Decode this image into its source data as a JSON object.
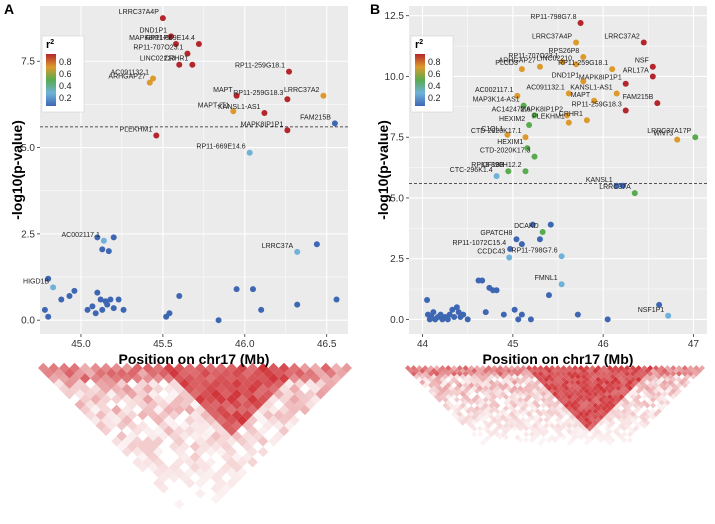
{
  "legend": {
    "title": "r",
    "title_sup": "2",
    "ticks": [
      "0.8",
      "0.6",
      "0.4",
      "0.2"
    ]
  },
  "colors": {
    "bin1": "#3e67b3",
    "bin2": "#6fb2d9",
    "bin3": "#59ab4f",
    "bin4": "#dd9a2c",
    "bin5": "#b3262c",
    "panel_bg": "#ebebeb",
    "grid": "#ffffff",
    "threshold": "#222222"
  },
  "chart_data": [
    {
      "panel": "A",
      "type": "scatter",
      "xlabel": "Position on chr17 (Mb)",
      "ylabel": "-log10(p-value)",
      "xlim": [
        44.75,
        46.63
      ],
      "ylim": [
        -0.4,
        9.1
      ],
      "xticks": [
        "45.0",
        "45.5",
        "46.0",
        "46.5"
      ],
      "yticks": [
        "0.0",
        "2.5",
        "5.0",
        "7.5"
      ],
      "threshold": 5.6,
      "points": [
        {
          "x": 45.5,
          "y": 8.75,
          "r2": 0.9,
          "label": "LRRC37A4P"
        },
        {
          "x": 45.55,
          "y": 8.22,
          "r2": 0.9,
          "label": "DND1P1"
        },
        {
          "x": 45.58,
          "y": 8.0,
          "r2": 0.9,
          "label": "MAPK8IP1P2"
        },
        {
          "x": 45.72,
          "y": 8.0,
          "r2": 0.9,
          "label": "RP11-669E14.4"
        },
        {
          "x": 45.65,
          "y": 7.72,
          "r2": 0.9,
          "label": "RP11-707O23.1"
        },
        {
          "x": 45.68,
          "y": 7.4,
          "r2": 0.9,
          "label": "CRHR1"
        },
        {
          "x": 45.6,
          "y": 7.4,
          "r2": 0.9,
          "label": "LINC02210"
        },
        {
          "x": 45.44,
          "y": 7.0,
          "r2": 0.7,
          "label": "AC091132.1"
        },
        {
          "x": 45.42,
          "y": 6.88,
          "r2": 0.7,
          "label": "ARHGAP27"
        },
        {
          "x": 46.27,
          "y": 7.2,
          "r2": 0.9,
          "label": "RP11-259G18.1"
        },
        {
          "x": 45.95,
          "y": 6.5,
          "r2": 0.9,
          "label": "MAPT"
        },
        {
          "x": 46.26,
          "y": 6.4,
          "r2": 0.9,
          "label": "RP11-259G18.3"
        },
        {
          "x": 46.48,
          "y": 6.5,
          "r2": 0.7,
          "label": "LRRC37A2"
        },
        {
          "x": 45.93,
          "y": 6.05,
          "r2": 0.7,
          "label": "MAPT-IT1"
        },
        {
          "x": 46.12,
          "y": 6.0,
          "r2": 0.9,
          "label": "KANSL1-AS1"
        },
        {
          "x": 46.55,
          "y": 5.7,
          "r2": 0.2,
          "label": "FAM215B"
        },
        {
          "x": 46.26,
          "y": 5.5,
          "r2": 0.9,
          "label": "MAPK8IP1P1"
        },
        {
          "x": 45.46,
          "y": 5.35,
          "r2": 0.9,
          "label": "PLEKHM1"
        },
        {
          "x": 46.03,
          "y": 4.85,
          "r2": 0.3,
          "label": "RP11-669E14.6"
        },
        {
          "x": 45.14,
          "y": 2.3,
          "r2": 0.3,
          "label": "AC002117.1"
        },
        {
          "x": 46.32,
          "y": 1.98,
          "r2": 0.3,
          "label": "LRRC37A"
        },
        {
          "x": 44.83,
          "y": 0.95,
          "r2": 0.3,
          "label": "HIGD1B"
        },
        {
          "x": 45.1,
          "y": 2.4,
          "r2": 0.2,
          "label": ""
        },
        {
          "x": 45.2,
          "y": 2.4,
          "r2": 0.2,
          "label": ""
        },
        {
          "x": 45.13,
          "y": 2.05,
          "r2": 0.2,
          "label": ""
        },
        {
          "x": 45.17,
          "y": 2.0,
          "r2": 0.2,
          "label": ""
        },
        {
          "x": 46.44,
          "y": 2.2,
          "r2": 0.2,
          "label": ""
        },
        {
          "x": 44.8,
          "y": 1.2,
          "r2": 0.2,
          "label": ""
        },
        {
          "x": 44.88,
          "y": 0.6,
          "r2": 0.2,
          "label": ""
        },
        {
          "x": 44.93,
          "y": 0.7,
          "r2": 0.2,
          "label": ""
        },
        {
          "x": 44.96,
          "y": 0.85,
          "r2": 0.2,
          "label": ""
        },
        {
          "x": 44.78,
          "y": 0.3,
          "r2": 0.2,
          "label": ""
        },
        {
          "x": 44.8,
          "y": 0.1,
          "r2": 0.2,
          "label": ""
        },
        {
          "x": 45.04,
          "y": 0.3,
          "r2": 0.2,
          "label": ""
        },
        {
          "x": 45.07,
          "y": 0.4,
          "r2": 0.2,
          "label": ""
        },
        {
          "x": 45.09,
          "y": 0.2,
          "r2": 0.2,
          "label": ""
        },
        {
          "x": 45.1,
          "y": 0.8,
          "r2": 0.2,
          "label": ""
        },
        {
          "x": 45.12,
          "y": 0.6,
          "r2": 0.2,
          "label": ""
        },
        {
          "x": 45.13,
          "y": 0.3,
          "r2": 0.2,
          "label": ""
        },
        {
          "x": 45.15,
          "y": 0.55,
          "r2": 0.2,
          "label": ""
        },
        {
          "x": 45.16,
          "y": 0.45,
          "r2": 0.2,
          "label": ""
        },
        {
          "x": 45.18,
          "y": 0.6,
          "r2": 0.2,
          "label": ""
        },
        {
          "x": 45.2,
          "y": 0.35,
          "r2": 0.2,
          "label": ""
        },
        {
          "x": 45.23,
          "y": 0.6,
          "r2": 0.2,
          "label": ""
        },
        {
          "x": 45.26,
          "y": 0.3,
          "r2": 0.2,
          "label": ""
        },
        {
          "x": 45.52,
          "y": 0.1,
          "r2": 0.2,
          "label": ""
        },
        {
          "x": 45.54,
          "y": 0.2,
          "r2": 0.2,
          "label": ""
        },
        {
          "x": 45.84,
          "y": 0.0,
          "r2": 0.2,
          "label": ""
        },
        {
          "x": 46.1,
          "y": 0.3,
          "r2": 0.2,
          "label": ""
        },
        {
          "x": 46.32,
          "y": 0.45,
          "r2": 0.2,
          "label": ""
        },
        {
          "x": 46.56,
          "y": 0.6,
          "r2": 0.2,
          "label": ""
        },
        {
          "x": 45.6,
          "y": 0.7,
          "r2": 0.2,
          "label": ""
        },
        {
          "x": 45.95,
          "y": 0.9,
          "r2": 0.2,
          "label": ""
        },
        {
          "x": 46.05,
          "y": 0.9,
          "r2": 0.2,
          "label": ""
        }
      ]
    },
    {
      "panel": "B",
      "type": "scatter",
      "xlabel": "Position on chr17 (Mb)",
      "ylabel": "-log10(p-value)",
      "xlim": [
        43.85,
        47.15
      ],
      "ylim": [
        -0.6,
        12.9
      ],
      "xticks": [
        "44",
        "45",
        "46",
        "47"
      ],
      "yticks": [
        "0.0",
        "2.5",
        "5.0",
        "7.5",
        "10.0",
        "12.5"
      ],
      "threshold": 5.6,
      "points": [
        {
          "x": 45.75,
          "y": 12.2,
          "r2": 0.9,
          "label": "RP11-798G7.8"
        },
        {
          "x": 45.7,
          "y": 11.4,
          "r2": 0.7,
          "label": "LRRC37A4P"
        },
        {
          "x": 46.45,
          "y": 11.4,
          "r2": 0.9,
          "label": "LRRC37A2"
        },
        {
          "x": 45.78,
          "y": 10.8,
          "r2": 0.7,
          "label": "RPS26P8"
        },
        {
          "x": 45.55,
          "y": 10.6,
          "r2": 0.7,
          "label": "RP11-707O23.1"
        },
        {
          "x": 45.7,
          "y": 10.5,
          "r2": 0.7,
          "label": "LINC02210"
        },
        {
          "x": 45.3,
          "y": 10.4,
          "r2": 0.7,
          "label": "ARHGAP27"
        },
        {
          "x": 45.1,
          "y": 10.3,
          "r2": 0.7,
          "label": "PLCD3"
        },
        {
          "x": 46.55,
          "y": 10.4,
          "r2": 0.9,
          "label": "NSF"
        },
        {
          "x": 46.1,
          "y": 10.3,
          "r2": 0.7,
          "label": "RP11-259G18.1"
        },
        {
          "x": 46.55,
          "y": 10.0,
          "r2": 0.9,
          "label": "ARL17A"
        },
        {
          "x": 46.25,
          "y": 9.7,
          "r2": 0.9,
          "label": "MAPK8IP1P1"
        },
        {
          "x": 45.78,
          "y": 9.8,
          "r2": 0.7,
          "label": "DND1P1"
        },
        {
          "x": 45.62,
          "y": 9.3,
          "r2": 0.7,
          "label": "AC091132.1"
        },
        {
          "x": 45.05,
          "y": 9.2,
          "r2": 0.7,
          "label": "AC002117.1"
        },
        {
          "x": 46.15,
          "y": 9.3,
          "r2": 0.7,
          "label": "KANSL1-AS1"
        },
        {
          "x": 45.9,
          "y": 9.0,
          "r2": 0.7,
          "label": "MAPT"
        },
        {
          "x": 45.12,
          "y": 8.8,
          "r2": 0.5,
          "label": "MAP3K14-AS1"
        },
        {
          "x": 45.6,
          "y": 8.4,
          "r2": 0.7,
          "label": "MAPK8IP1P2"
        },
        {
          "x": 45.82,
          "y": 8.2,
          "r2": 0.7,
          "label": "CRHR1"
        },
        {
          "x": 46.6,
          "y": 8.9,
          "r2": 0.9,
          "label": "FAM215B"
        },
        {
          "x": 45.24,
          "y": 8.4,
          "r2": 0.5,
          "label": "AC142472.6"
        },
        {
          "x": 45.62,
          "y": 8.1,
          "r2": 0.7,
          "label": "PLEKHM1"
        },
        {
          "x": 46.25,
          "y": 8.6,
          "r2": 0.9,
          "label": "RP11-259G18.3"
        },
        {
          "x": 45.18,
          "y": 8.0,
          "r2": 0.5,
          "label": "HEXIM2"
        },
        {
          "x": 47.02,
          "y": 7.5,
          "r2": 0.5,
          "label": "LRRC37A17P"
        },
        {
          "x": 46.82,
          "y": 7.4,
          "r2": 0.7,
          "label": "WNT3"
        },
        {
          "x": 44.94,
          "y": 7.6,
          "r2": 0.7,
          "label": "C1QL1"
        },
        {
          "x": 45.14,
          "y": 7.5,
          "r2": 0.7,
          "label": "CTD-2020K17.1"
        },
        {
          "x": 45.16,
          "y": 7.05,
          "r2": 0.5,
          "label": "HEXIM1"
        },
        {
          "x": 45.24,
          "y": 6.7,
          "r2": 0.5,
          "label": "CTD-2020K17.3"
        },
        {
          "x": 44.95,
          "y": 6.1,
          "r2": 0.5,
          "label": "KIF18B"
        },
        {
          "x": 45.14,
          "y": 6.1,
          "r2": 0.5,
          "label": "RP13-890H12.2"
        },
        {
          "x": 44.82,
          "y": 5.9,
          "r2": 0.3,
          "label": "CTC-296K1.4"
        },
        {
          "x": 46.15,
          "y": 5.5,
          "r2": 0.2,
          "label": "KANSL1"
        },
        {
          "x": 46.35,
          "y": 5.2,
          "r2": 0.5,
          "label": "LRRC37A"
        },
        {
          "x": 45.33,
          "y": 3.6,
          "r2": 0.5,
          "label": "DCAKD"
        },
        {
          "x": 45.04,
          "y": 3.3,
          "r2": 0.2,
          "label": "GPATCH8"
        },
        {
          "x": 44.97,
          "y": 2.9,
          "r2": 0.2,
          "label": "RP11-1072C15.4"
        },
        {
          "x": 44.96,
          "y": 2.55,
          "r2": 0.3,
          "label": "CCDC43"
        },
        {
          "x": 45.54,
          "y": 2.6,
          "r2": 0.3,
          "label": "RP11-798G7.6"
        },
        {
          "x": 45.54,
          "y": 1.45,
          "r2": 0.3,
          "label": "FMNL1"
        },
        {
          "x": 46.72,
          "y": 0.15,
          "r2": 0.3,
          "label": "NSF1P1"
        },
        {
          "x": 45.22,
          "y": 3.9,
          "r2": 0.2,
          "label": ""
        },
        {
          "x": 45.1,
          "y": 3.1,
          "r2": 0.2,
          "label": ""
        },
        {
          "x": 45.3,
          "y": 3.3,
          "r2": 0.2,
          "label": ""
        },
        {
          "x": 45.42,
          "y": 3.9,
          "r2": 0.2,
          "label": ""
        },
        {
          "x": 46.22,
          "y": 5.5,
          "r2": 0.2,
          "label": ""
        },
        {
          "x": 44.05,
          "y": 0.8,
          "r2": 0.2,
          "label": ""
        },
        {
          "x": 44.06,
          "y": 0.2,
          "r2": 0.2,
          "label": ""
        },
        {
          "x": 44.08,
          "y": 0.0,
          "r2": 0.2,
          "label": ""
        },
        {
          "x": 44.1,
          "y": 0.1,
          "r2": 0.2,
          "label": ""
        },
        {
          "x": 44.12,
          "y": 0.3,
          "r2": 0.2,
          "label": ""
        },
        {
          "x": 44.14,
          "y": 0.0,
          "r2": 0.2,
          "label": ""
        },
        {
          "x": 44.17,
          "y": 0.1,
          "r2": 0.2,
          "label": ""
        },
        {
          "x": 44.2,
          "y": 0.2,
          "r2": 0.2,
          "label": ""
        },
        {
          "x": 44.22,
          "y": 0.0,
          "r2": 0.2,
          "label": ""
        },
        {
          "x": 44.25,
          "y": 0.1,
          "r2": 0.2,
          "label": ""
        },
        {
          "x": 44.28,
          "y": 0.0,
          "r2": 0.2,
          "label": ""
        },
        {
          "x": 44.3,
          "y": 0.2,
          "r2": 0.2,
          "label": ""
        },
        {
          "x": 44.33,
          "y": 0.4,
          "r2": 0.2,
          "label": ""
        },
        {
          "x": 44.35,
          "y": 0.1,
          "r2": 0.2,
          "label": ""
        },
        {
          "x": 44.38,
          "y": 0.5,
          "r2": 0.2,
          "label": ""
        },
        {
          "x": 44.4,
          "y": 0.3,
          "r2": 0.2,
          "label": ""
        },
        {
          "x": 44.42,
          "y": 0.1,
          "r2": 0.2,
          "label": ""
        },
        {
          "x": 44.45,
          "y": 0.2,
          "r2": 0.2,
          "label": ""
        },
        {
          "x": 44.5,
          "y": 0.0,
          "r2": 0.2,
          "label": ""
        },
        {
          "x": 44.62,
          "y": 1.6,
          "r2": 0.2,
          "label": ""
        },
        {
          "x": 44.66,
          "y": 1.6,
          "r2": 0.2,
          "label": ""
        },
        {
          "x": 44.74,
          "y": 1.3,
          "r2": 0.2,
          "label": ""
        },
        {
          "x": 44.78,
          "y": 1.2,
          "r2": 0.2,
          "label": ""
        },
        {
          "x": 44.82,
          "y": 1.2,
          "r2": 0.2,
          "label": ""
        },
        {
          "x": 44.7,
          "y": 0.3,
          "r2": 0.2,
          "label": ""
        },
        {
          "x": 44.9,
          "y": 0.2,
          "r2": 0.2,
          "label": ""
        },
        {
          "x": 45.02,
          "y": 0.4,
          "r2": 0.2,
          "label": ""
        },
        {
          "x": 45.06,
          "y": 0.0,
          "r2": 0.2,
          "label": ""
        },
        {
          "x": 45.1,
          "y": 0.2,
          "r2": 0.2,
          "label": ""
        },
        {
          "x": 45.2,
          "y": 0.0,
          "r2": 0.2,
          "label": ""
        },
        {
          "x": 45.4,
          "y": 1.0,
          "r2": 0.2,
          "label": ""
        },
        {
          "x": 45.72,
          "y": 0.2,
          "r2": 0.2,
          "label": ""
        },
        {
          "x": 46.05,
          "y": 0.0,
          "r2": 0.2,
          "label": ""
        },
        {
          "x": 46.62,
          "y": 0.6,
          "r2": 0.2,
          "label": ""
        }
      ]
    }
  ]
}
